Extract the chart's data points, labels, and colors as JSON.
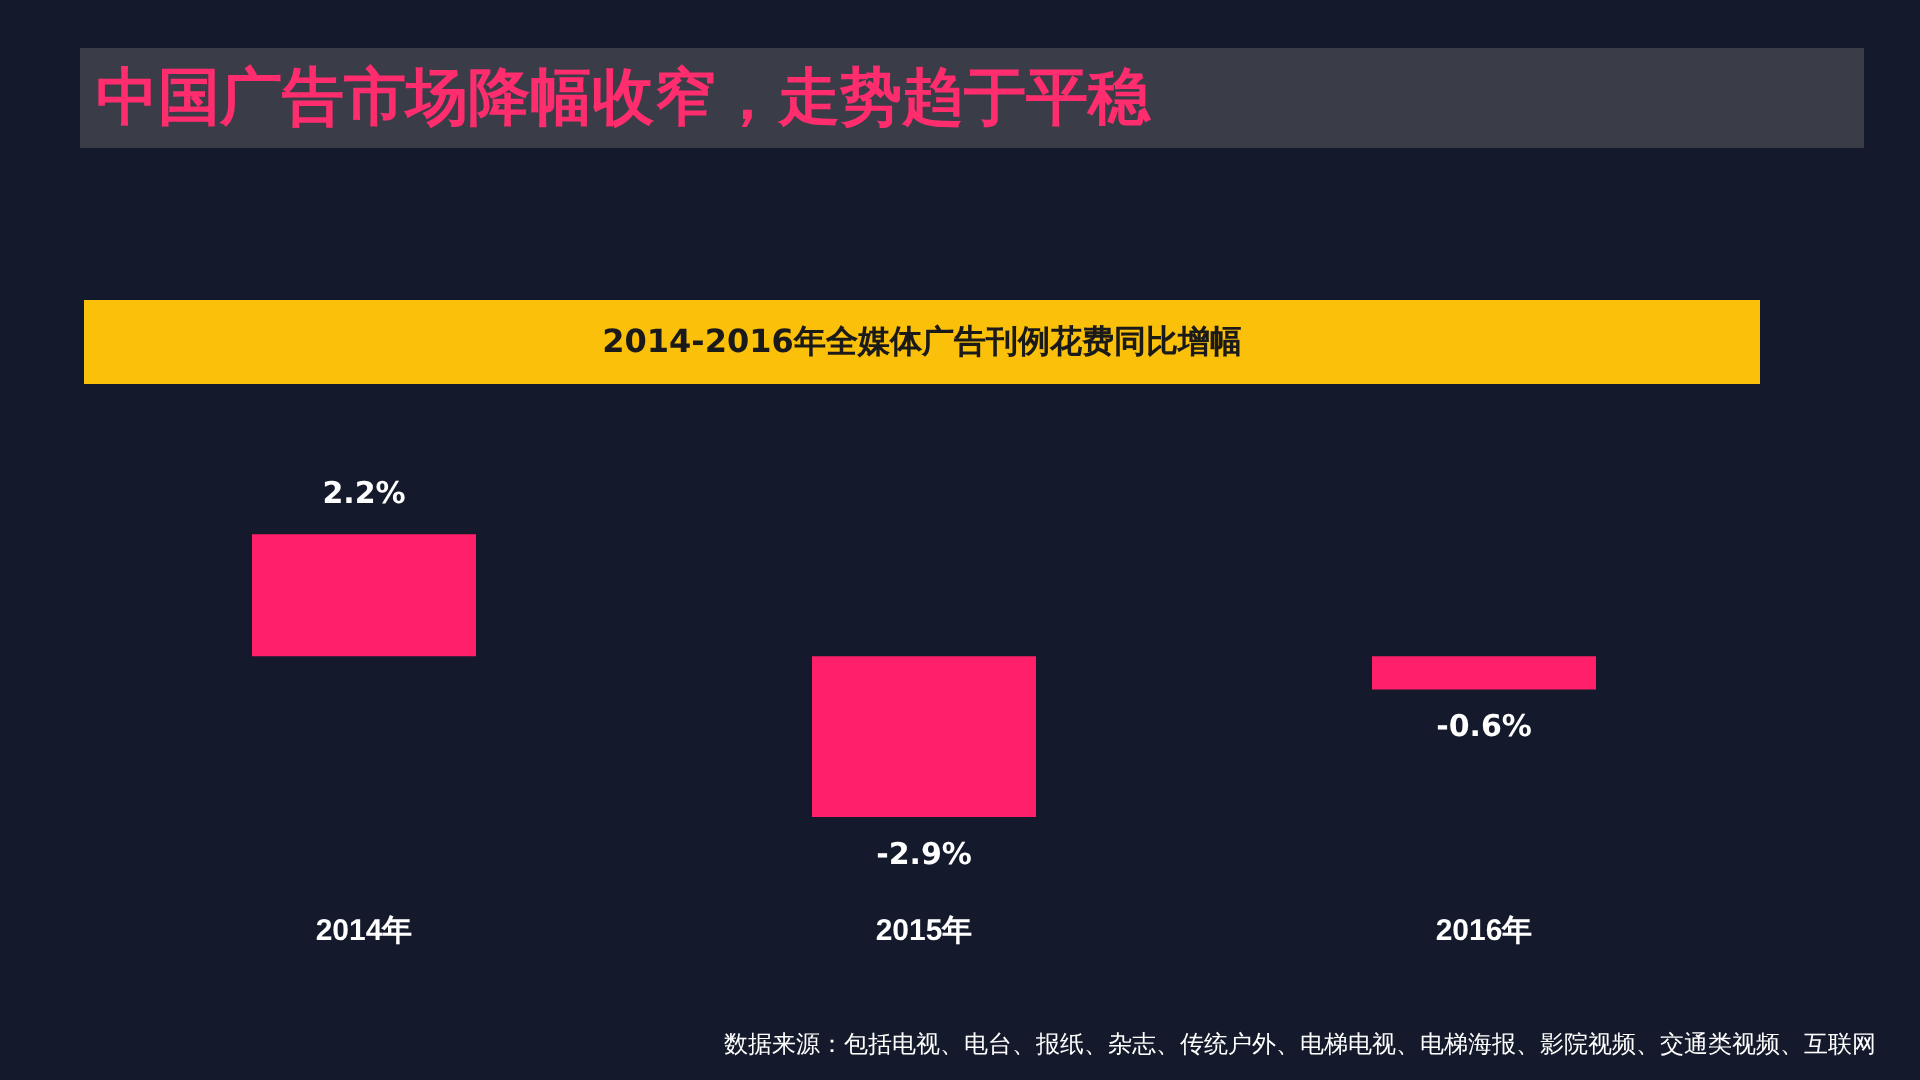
{
  "chart_data": {
    "type": "bar",
    "title": "中国广告市场降幅收窄，走势趋于平稳",
    "subtitle": "2014-2016年全媒体广告刊例花费同比增幅",
    "categories": [
      "2014年",
      "2015年",
      "2016年"
    ],
    "values": [
      2.2,
      -2.9,
      -0.6
    ],
    "color": "#ff1f6b",
    "value_labels": [
      "2.2%",
      "-2.9%",
      "-0.6%"
    ],
    "legend": false,
    "annotations": [
      "数据来源：包括电视、电台、报纸、杂志、传统户外、电梯电视、电梯海报、影院视频、交通类视频、互联网"
    ]
  }
}
